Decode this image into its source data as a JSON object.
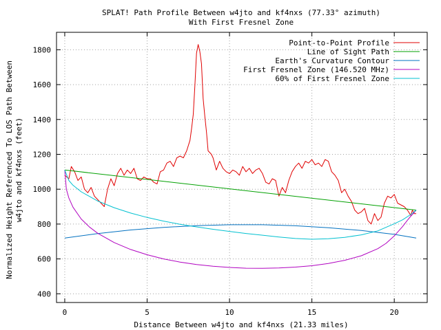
{
  "chart_data": {
    "type": "line",
    "title": "SPLAT! Path Profile Between w4jto and kf4nxs (77.33° azimuth)",
    "subtitle": "With First Fresnel Zone",
    "xlabel": "Distance Between w4jto and kf4nxs (21.33 miles)",
    "ylabel_line1": "Normalized Height Referenced To LOS Path Between",
    "ylabel_line2": "w4jto and kf4nxs (feet)",
    "xlim": [
      -0.5,
      22
    ],
    "ylim": [
      350,
      1900
    ],
    "x_ticks": [
      0,
      5,
      10,
      15,
      20
    ],
    "y_ticks": [
      400,
      600,
      800,
      1000,
      1200,
      1400,
      1600,
      1800
    ],
    "grid": true,
    "legend_position": "top-right",
    "series": [
      {
        "name": "Point-to-Point Profile",
        "color": "#e00000",
        "x": [
          0,
          0.25,
          0.4,
          0.6,
          0.8,
          1.0,
          1.2,
          1.4,
          1.6,
          1.8,
          2.0,
          2.2,
          2.4,
          2.6,
          2.8,
          3.0,
          3.2,
          3.4,
          3.6,
          3.8,
          4.0,
          4.2,
          4.4,
          4.6,
          4.8,
          5.0,
          5.2,
          5.4,
          5.6,
          5.8,
          6.0,
          6.2,
          6.4,
          6.6,
          6.8,
          7.0,
          7.2,
          7.4,
          7.6,
          7.7,
          7.8,
          7.9,
          8.0,
          8.1,
          8.2,
          8.3,
          8.4,
          8.5,
          8.6,
          8.7,
          8.8,
          8.9,
          9.0,
          9.2,
          9.4,
          9.6,
          9.8,
          10.0,
          10.2,
          10.4,
          10.6,
          10.8,
          11.0,
          11.2,
          11.4,
          11.6,
          11.8,
          12.0,
          12.2,
          12.4,
          12.6,
          12.8,
          13.0,
          13.2,
          13.4,
          13.6,
          13.8,
          14.0,
          14.2,
          14.4,
          14.6,
          14.8,
          15.0,
          15.2,
          15.4,
          15.6,
          15.8,
          16.0,
          16.2,
          16.4,
          16.6,
          16.8,
          17.0,
          17.2,
          17.4,
          17.6,
          17.8,
          18.0,
          18.2,
          18.4,
          18.6,
          18.8,
          19.0,
          19.2,
          19.4,
          19.6,
          19.8,
          20.0,
          20.2,
          20.4,
          20.6,
          20.8,
          21.0,
          21.1,
          21.2,
          21.33
        ],
        "y": [
          1080,
          1060,
          1130,
          1100,
          1050,
          1070,
          1000,
          980,
          1010,
          960,
          940,
          920,
          900,
          1000,
          1060,
          1020,
          1090,
          1120,
          1080,
          1110,
          1090,
          1120,
          1060,
          1050,
          1070,
          1060,
          1060,
          1040,
          1030,
          1100,
          1110,
          1150,
          1160,
          1130,
          1180,
          1190,
          1180,
          1220,
          1280,
          1350,
          1430,
          1600,
          1780,
          1830,
          1790,
          1720,
          1520,
          1420,
          1330,
          1220,
          1210,
          1200,
          1180,
          1110,
          1160,
          1120,
          1100,
          1090,
          1110,
          1100,
          1080,
          1130,
          1100,
          1120,
          1090,
          1110,
          1120,
          1090,
          1040,
          1030,
          1060,
          1050,
          960,
          1010,
          980,
          1050,
          1100,
          1130,
          1150,
          1120,
          1160,
          1150,
          1170,
          1140,
          1150,
          1130,
          1170,
          1160,
          1100,
          1080,
          1050,
          980,
          1000,
          960,
          930,
          880,
          860,
          870,
          890,
          820,
          800,
          860,
          820,
          840,
          920,
          960,
          950,
          970,
          920,
          910,
          900,
          880,
          850,
          880,
          860,
          860
        ]
      },
      {
        "name": "Line of Sight Path",
        "color": "#00a000",
        "x": [
          0,
          21.33
        ],
        "y": [
          1110,
          880
        ]
      },
      {
        "name": "Earth's Curvature Contour",
        "color": "#0070c0",
        "x": [
          0,
          2,
          4,
          6,
          8,
          10,
          12,
          14,
          16,
          18,
          20,
          21.33
        ],
        "y": [
          720,
          745,
          766,
          781,
          791,
          796,
          796,
          790,
          779,
          763,
          741,
          720
        ]
      },
      {
        "name": "First Fresnel Zone (146.520 MHz)",
        "color": "#b000c0",
        "x": [
          0,
          0.1,
          0.25,
          0.5,
          1,
          1.5,
          2,
          3,
          4,
          5,
          6,
          7,
          8,
          9,
          10,
          11,
          12,
          13,
          14,
          15,
          16,
          17,
          18,
          19,
          19.5,
          20,
          20.5,
          20.8,
          21,
          21.2,
          21.33
        ],
        "y": [
          1110,
          1000,
          950,
          897,
          829,
          783,
          747,
          694,
          654,
          624,
          600,
          582,
          568,
          558,
          551,
          547,
          546,
          548,
          553,
          561,
          574,
          592,
          618,
          659,
          689,
          732,
          785,
          822,
          845,
          865,
          880
        ]
      },
      {
        "name": "60% of First Fresnel Zone",
        "color": "#00c0d0",
        "x": [
          0,
          0.25,
          0.5,
          1,
          2,
          3,
          4,
          5,
          6,
          7,
          8,
          9,
          10,
          11,
          12,
          13,
          14,
          15,
          16,
          17,
          18,
          19,
          20,
          20.5,
          21,
          21.33
        ],
        "y": [
          1110,
          1050,
          1023,
          985,
          932,
          894,
          863,
          838,
          817,
          799,
          784,
          770,
          758,
          746,
          736,
          726,
          717,
          713,
          716,
          724,
          738,
          761,
          802,
          824,
          855,
          880
        ]
      }
    ]
  }
}
